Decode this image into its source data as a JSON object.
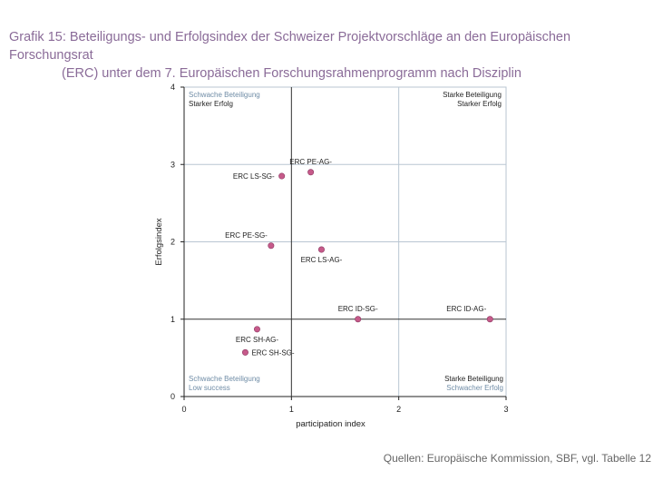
{
  "title_line1": "Grafik 15: Beteiligungs- und Erfolgsindex der Schweizer Projektvorschläge an den Europäischen Forschungsrat",
  "title_line2": "(ERC) unter dem 7. Europäischen Forschungsrahmenprogramm nach Disziplin",
  "source": "Quellen: Europäische Kommission, SBF, vgl. Tabelle 12",
  "colors": {
    "title": "#8a6b98",
    "point": "#c65a8a",
    "grid": "#b9c6d2",
    "blue_text": "#6f8ca6"
  },
  "chart_data": {
    "type": "scatter",
    "xlabel": "participation index",
    "ylabel": "Erfolgsindex",
    "xlim": [
      0,
      3
    ],
    "ylim": [
      0,
      4
    ],
    "xticks": [
      0,
      1,
      2,
      3
    ],
    "yticks": [
      0,
      1,
      2,
      3,
      4
    ],
    "reference_lines": {
      "x": 1,
      "y": 1
    },
    "quadrants": {
      "top_left": [
        "Schwache Beteiligung",
        "Starker Erfolg"
      ],
      "top_right": [
        "Starke Beteiligung",
        "Starker Erfolg"
      ],
      "bottom_left": [
        "Schwache Beteiligung",
        "Low success"
      ],
      "bottom_right": [
        "Starke Beteiligung",
        "Schwacher Erfolg"
      ]
    },
    "points": [
      {
        "label": "ERC PE-AG-",
        "x": 1.18,
        "y": 2.9,
        "pos": "above"
      },
      {
        "label": "ERC LS-SG-",
        "x": 0.91,
        "y": 2.85,
        "pos": "left"
      },
      {
        "label": "ERC PE-SG-",
        "x": 0.81,
        "y": 1.95,
        "pos": "above-left"
      },
      {
        "label": "ERC LS-AG-",
        "x": 1.28,
        "y": 1.9,
        "pos": "below"
      },
      {
        "label": "ERC ID-SG-",
        "x": 1.62,
        "y": 1.0,
        "pos": "above"
      },
      {
        "label": "ERC ID-AG-",
        "x": 2.85,
        "y": 1.0,
        "pos": "above-left"
      },
      {
        "label": "ERC SH-AG-",
        "x": 0.68,
        "y": 0.87,
        "pos": "below"
      },
      {
        "label": "ERC SH-SG-",
        "x": 0.57,
        "y": 0.57,
        "pos": "right"
      }
    ]
  }
}
